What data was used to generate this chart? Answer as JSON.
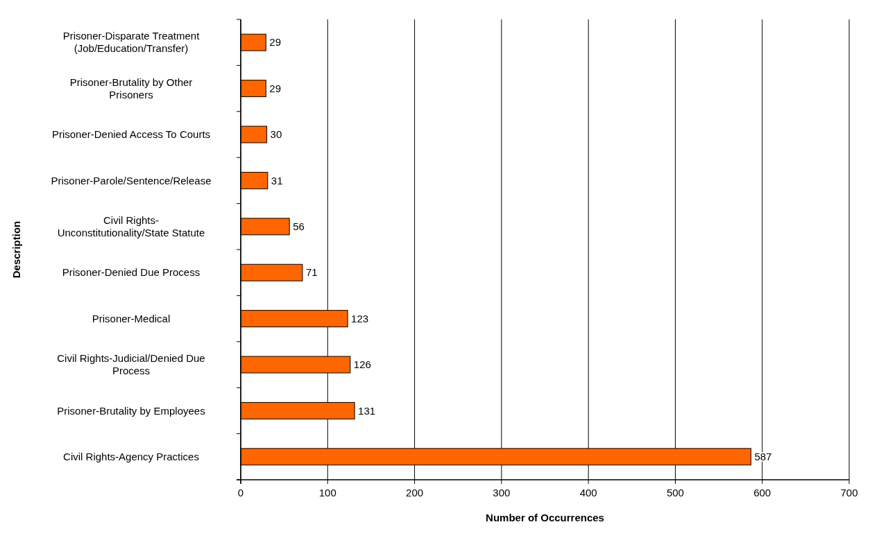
{
  "chart_data": {
    "type": "bar",
    "orientation": "horizontal",
    "xlabel": "Number of Occurrences",
    "ylabel": "Description",
    "categories": [
      "Prisoner-Disparate Treatment (Job/Education/Transfer)",
      "Prisoner-Brutality by Other Prisoners",
      "Prisoner-Denied Access To Courts",
      "Prisoner-Parole/Sentence/Release",
      "Civil Rights-Unconstitutionality/State Statute",
      "Prisoner-Denied Due Process",
      "Prisoner-Medical",
      "Civil Rights-Judicial/Denied Due Process",
      "Prisoner-Brutality by Employees",
      "Civil Rights-Agency Practices"
    ],
    "values": [
      29,
      29,
      30,
      31,
      56,
      71,
      123,
      126,
      131,
      587
    ],
    "color": "#ff6600",
    "xlim": [
      0,
      700
    ],
    "xticks": [
      0,
      100,
      200,
      300,
      400,
      500,
      600,
      700
    ],
    "grid": "x",
    "data_labels": true
  }
}
